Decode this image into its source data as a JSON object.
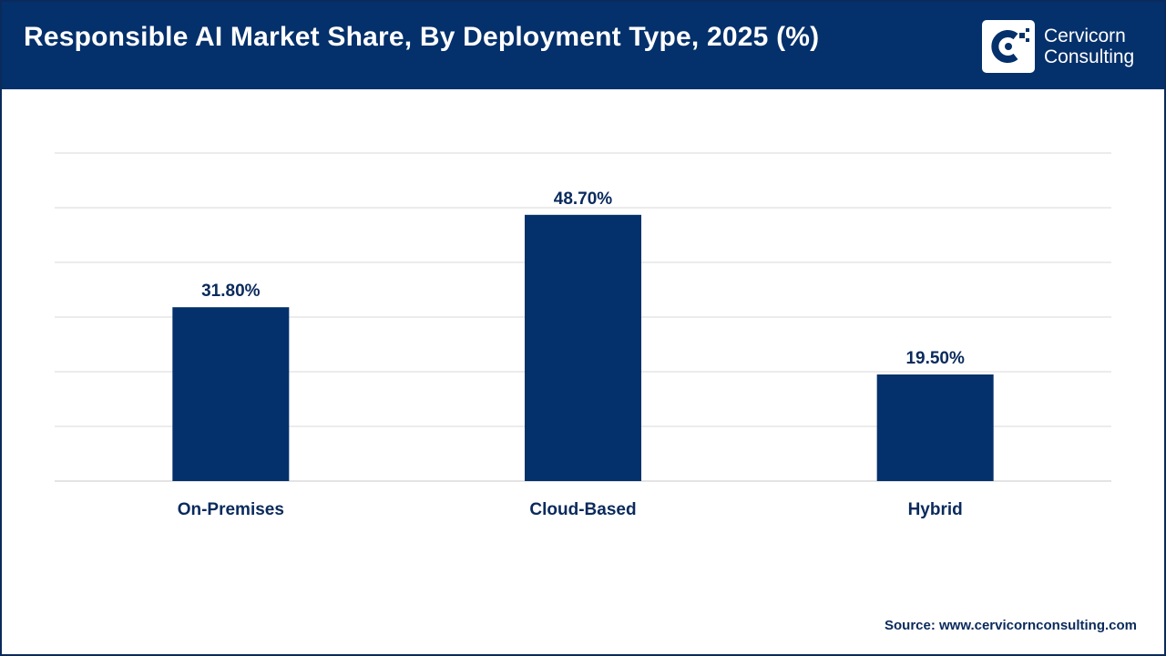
{
  "header": {
    "title": "Responsible AI Market Share, By Deployment Type, 2025 (%)",
    "logo": {
      "line1": "Cervicorn",
      "line2": "Consulting",
      "icon": "cervicorn-logo-icon"
    }
  },
  "colors": {
    "header_bg": "#04306b",
    "bar": "#04306b",
    "label": "#0a2a5c",
    "grid": "#d9d9d9"
  },
  "chart_data": {
    "type": "bar",
    "title": "Responsible AI Market Share, By Deployment Type, 2025 (%)",
    "categories": [
      "On-Premises",
      "Cloud-Based",
      "Hybrid"
    ],
    "values": [
      31.8,
      48.7,
      19.5
    ],
    "value_labels": [
      "31.80%",
      "48.70%",
      "19.50%"
    ],
    "xlabel": "",
    "ylabel": "",
    "ylim": [
      0,
      60
    ],
    "grid": true,
    "legend": "none"
  },
  "footer": {
    "source": "Source: www.cervicornconsulting.com"
  }
}
